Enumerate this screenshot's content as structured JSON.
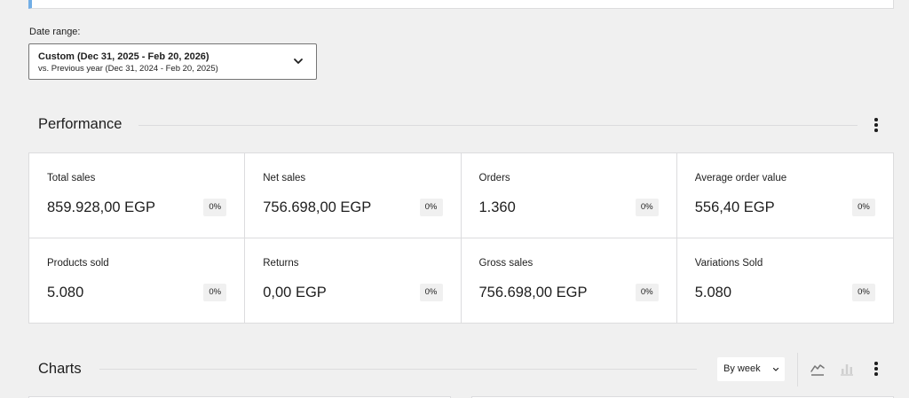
{
  "date_range": {
    "label": "Date range:",
    "primary": "Custom (Dec 31, 2025 - Feb 20, 2026)",
    "comparison": "vs. Previous year (Dec 31, 2024 - Feb 20, 2025)"
  },
  "performance": {
    "title": "Performance",
    "tiles": [
      {
        "label": "Total sales",
        "value": "859.928,00 EGP",
        "delta": "0%"
      },
      {
        "label": "Net sales",
        "value": "756.698,00 EGP",
        "delta": "0%"
      },
      {
        "label": "Orders",
        "value": "1.360",
        "delta": "0%"
      },
      {
        "label": "Average order value",
        "value": "556,40 EGP",
        "delta": "0%"
      },
      {
        "label": "Products sold",
        "value": "5.080",
        "delta": "0%"
      },
      {
        "label": "Returns",
        "value": "0,00 EGP",
        "delta": "0%"
      },
      {
        "label": "Gross sales",
        "value": "756.698,00 EGP",
        "delta": "0%"
      },
      {
        "label": "Variations Sold",
        "value": "5.080",
        "delta": "0%"
      }
    ]
  },
  "charts": {
    "title": "Charts",
    "interval": "By week",
    "icons": [
      "line-chart-icon",
      "bar-chart-icon",
      "more-vertical-icon"
    ]
  },
  "colors": {
    "notice_accent": "#72aee6",
    "background": "#f0f0f0",
    "border": "#dcdcde",
    "text": "#1e1e1e"
  }
}
